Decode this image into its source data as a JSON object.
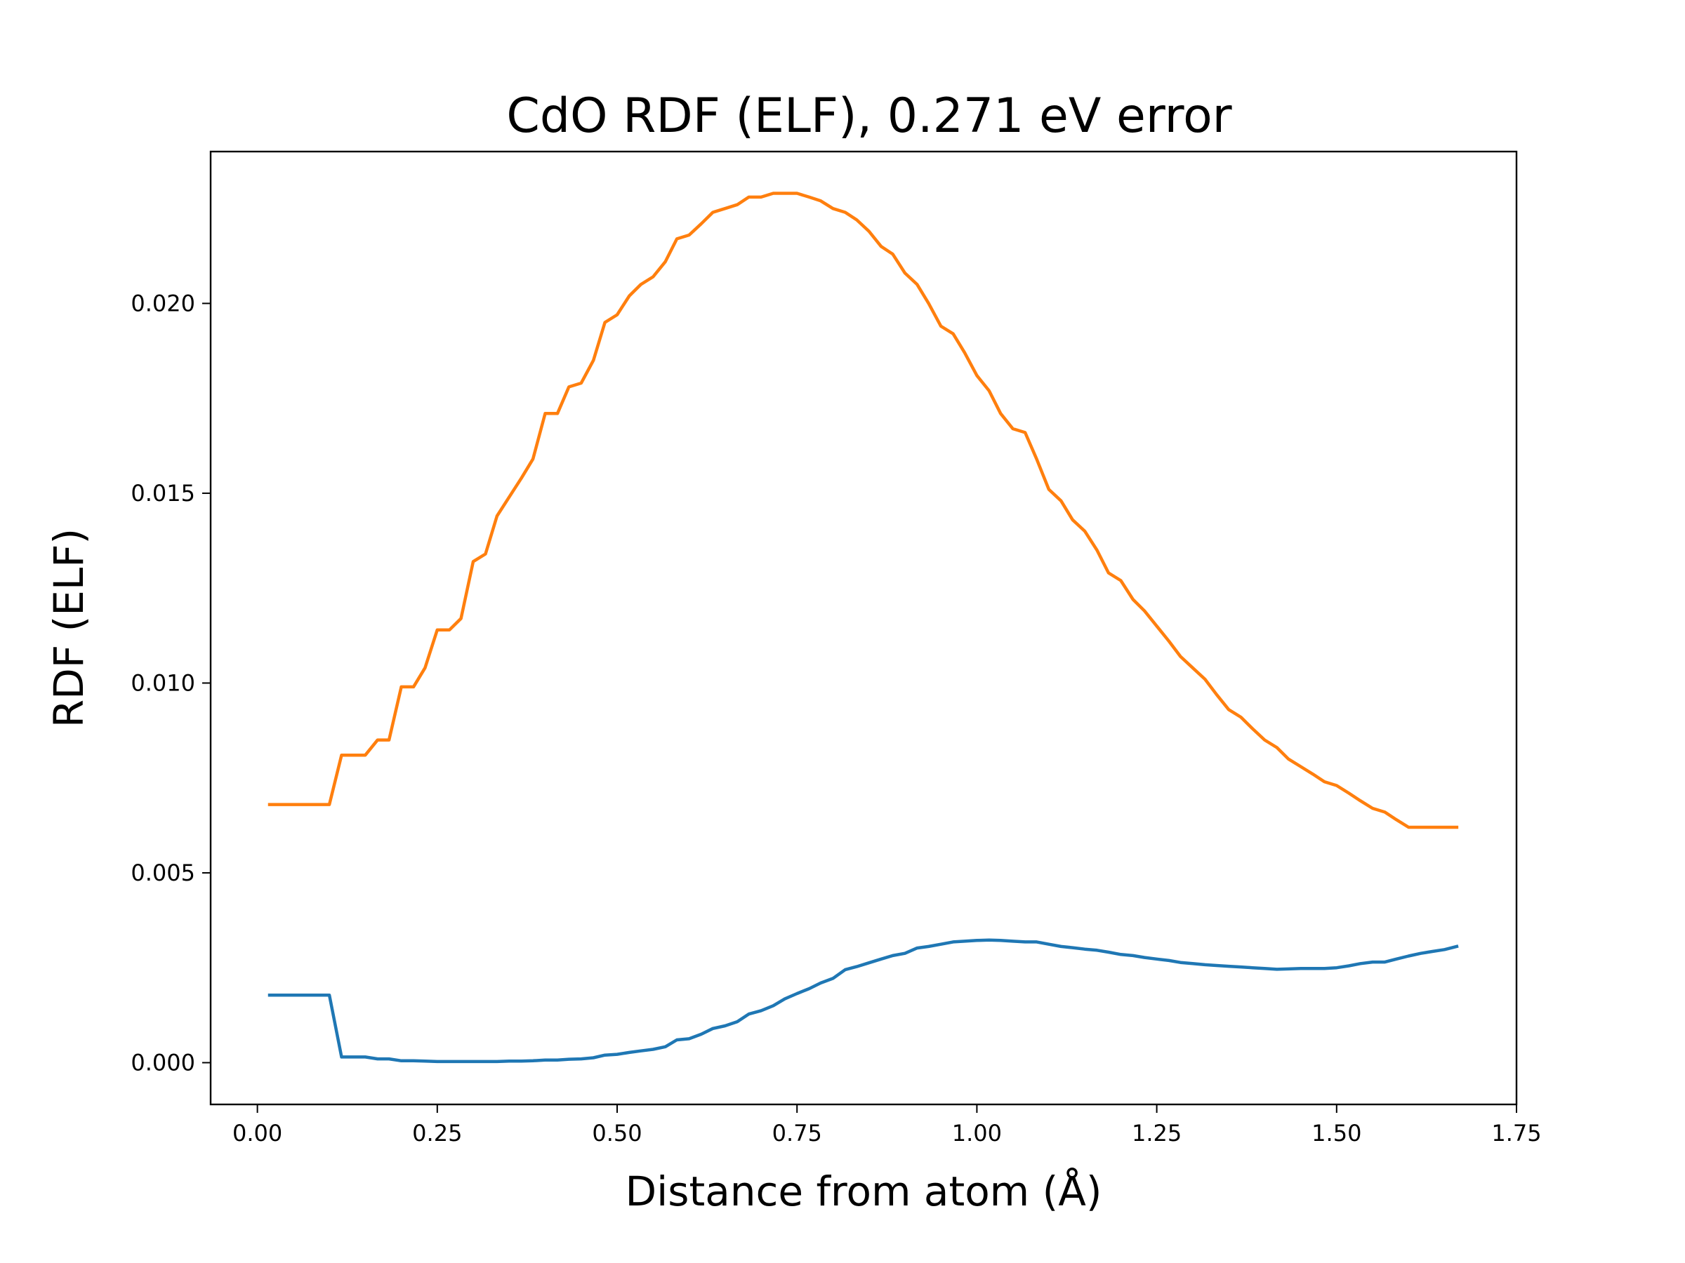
{
  "chart_data": {
    "type": "line",
    "title": "CdO RDF (ELF), 0.271 eV error",
    "xlabel": "Distance from atom (Å)",
    "ylabel": "RDF (ELF)",
    "xlim": [
      -0.065,
      1.75
    ],
    "ylim": [
      -0.0011,
      0.024
    ],
    "xticks": [
      0.0,
      0.25,
      0.5,
      0.75,
      1.0,
      1.25,
      1.5,
      1.75
    ],
    "xtick_labels": [
      "0.00",
      "0.25",
      "0.50",
      "0.75",
      "1.00",
      "1.25",
      "1.50",
      "1.75"
    ],
    "yticks": [
      0.0,
      0.005,
      0.01,
      0.015,
      0.02
    ],
    "ytick_labels": [
      "0.000",
      "0.005",
      "0.010",
      "0.015",
      "0.020"
    ],
    "grid": false,
    "series": [
      {
        "color": "#ff7f0e",
        "x": [
          0.017,
          0.1,
          0.117,
          0.15,
          0.167,
          0.183,
          0.2,
          0.217,
          0.233,
          0.25,
          0.267,
          0.283,
          0.3,
          0.317,
          0.333,
          0.35,
          0.367,
          0.383,
          0.4,
          0.417,
          0.433,
          0.45,
          0.467,
          0.483,
          0.5,
          0.517,
          0.533,
          0.55,
          0.567,
          0.583,
          0.6,
          0.617,
          0.633,
          0.65,
          0.667,
          0.683,
          0.7,
          0.717,
          0.733,
          0.75,
          0.767,
          0.783,
          0.8,
          0.817,
          0.833,
          0.85,
          0.867,
          0.883,
          0.9,
          0.917,
          0.933,
          0.95,
          0.967,
          0.983,
          1.0,
          1.017,
          1.033,
          1.05,
          1.067,
          1.083,
          1.1,
          1.117,
          1.133,
          1.15,
          1.167,
          1.183,
          1.2,
          1.217,
          1.233,
          1.25,
          1.267,
          1.283,
          1.3,
          1.317,
          1.333,
          1.35,
          1.367,
          1.383,
          1.4,
          1.417,
          1.433,
          1.45,
          1.467,
          1.483,
          1.5,
          1.517,
          1.533,
          1.55,
          1.567,
          1.583,
          1.6,
          1.617,
          1.633,
          1.65,
          1.667
        ],
        "y": [
          0.0068,
          0.0068,
          0.0081,
          0.0081,
          0.0085,
          0.0085,
          0.0099,
          0.0099,
          0.0104,
          0.0114,
          0.0114,
          0.0117,
          0.0132,
          0.0134,
          0.0144,
          0.0149,
          0.0154,
          0.0159,
          0.0171,
          0.0171,
          0.0178,
          0.0179,
          0.0185,
          0.0195,
          0.0197,
          0.0202,
          0.0205,
          0.0207,
          0.0211,
          0.0217,
          0.0218,
          0.0221,
          0.0224,
          0.0225,
          0.0226,
          0.0228,
          0.0228,
          0.0229,
          0.0229,
          0.0229,
          0.0228,
          0.0227,
          0.0225,
          0.0224,
          0.0222,
          0.0219,
          0.0215,
          0.0213,
          0.0208,
          0.0205,
          0.02,
          0.0194,
          0.0192,
          0.0187,
          0.0181,
          0.0177,
          0.0171,
          0.0167,
          0.0166,
          0.0159,
          0.0151,
          0.0148,
          0.0143,
          0.014,
          0.0135,
          0.0129,
          0.0127,
          0.0122,
          0.0119,
          0.0115,
          0.0111,
          0.0107,
          0.0104,
          0.0101,
          0.0097,
          0.0093,
          0.0091,
          0.0088,
          0.0085,
          0.0083,
          0.008,
          0.0078,
          0.0076,
          0.0074,
          0.0073,
          0.0071,
          0.0069,
          0.0067,
          0.0066,
          0.0064,
          0.0062,
          0.0062,
          0.0062,
          0.0062,
          0.0062
        ]
      },
      {
        "color": "#1f77b4",
        "x": [
          0.017,
          0.1,
          0.117,
          0.15,
          0.167,
          0.183,
          0.2,
          0.217,
          0.233,
          0.25,
          0.267,
          0.283,
          0.3,
          0.317,
          0.333,
          0.35,
          0.367,
          0.383,
          0.4,
          0.417,
          0.433,
          0.45,
          0.467,
          0.483,
          0.5,
          0.517,
          0.533,
          0.55,
          0.567,
          0.583,
          0.6,
          0.617,
          0.633,
          0.65,
          0.667,
          0.683,
          0.7,
          0.717,
          0.733,
          0.75,
          0.767,
          0.783,
          0.8,
          0.817,
          0.833,
          0.85,
          0.867,
          0.883,
          0.9,
          0.917,
          0.933,
          0.95,
          0.967,
          0.983,
          1.0,
          1.017,
          1.033,
          1.05,
          1.067,
          1.083,
          1.1,
          1.117,
          1.133,
          1.15,
          1.167,
          1.183,
          1.2,
          1.217,
          1.233,
          1.25,
          1.267,
          1.283,
          1.3,
          1.317,
          1.333,
          1.35,
          1.367,
          1.383,
          1.4,
          1.417,
          1.433,
          1.45,
          1.467,
          1.483,
          1.5,
          1.517,
          1.533,
          1.55,
          1.567,
          1.583,
          1.6,
          1.617,
          1.633,
          1.65,
          1.667
        ],
        "y": [
          0.00178,
          0.00178,
          0.00015,
          0.00015,
          0.0001,
          0.0001,
          5e-05,
          5e-05,
          4e-05,
          3e-05,
          3e-05,
          3e-05,
          3e-05,
          3e-05,
          3e-05,
          4e-05,
          4e-05,
          5e-05,
          7e-05,
          7e-05,
          9e-05,
          0.0001,
          0.00013,
          0.0002,
          0.00022,
          0.00027,
          0.00031,
          0.00035,
          0.00042,
          0.0006,
          0.00063,
          0.00075,
          0.0009,
          0.00097,
          0.00108,
          0.00128,
          0.00137,
          0.0015,
          0.00168,
          0.00182,
          0.00195,
          0.0021,
          0.00222,
          0.00245,
          0.00253,
          0.00263,
          0.00273,
          0.00282,
          0.00288,
          0.00302,
          0.00306,
          0.00312,
          0.00318,
          0.0032,
          0.00322,
          0.00323,
          0.00322,
          0.0032,
          0.00318,
          0.00318,
          0.00312,
          0.00306,
          0.00303,
          0.00299,
          0.00296,
          0.00291,
          0.00285,
          0.00282,
          0.00277,
          0.00273,
          0.00269,
          0.00264,
          0.00261,
          0.00258,
          0.00256,
          0.00254,
          0.00252,
          0.0025,
          0.00248,
          0.00246,
          0.00247,
          0.00248,
          0.00248,
          0.00248,
          0.0025,
          0.00255,
          0.00261,
          0.00265,
          0.00265,
          0.00273,
          0.00281,
          0.00288,
          0.00293,
          0.00298,
          0.00306
        ]
      }
    ]
  }
}
